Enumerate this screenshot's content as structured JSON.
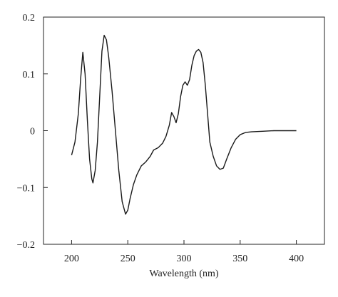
{
  "chart_data": {
    "type": "line",
    "xlabel": "Wavelength (nm)",
    "x": [
      200,
      203,
      206,
      208,
      210,
      212,
      214,
      216,
      218,
      219,
      221,
      223,
      225,
      227,
      229,
      231,
      233,
      236,
      239,
      242,
      245,
      248,
      250,
      252,
      255,
      258,
      262,
      266,
      270,
      273,
      277,
      281,
      284,
      287,
      289,
      291,
      293,
      295,
      297,
      299,
      301,
      303,
      305,
      307,
      309,
      311,
      313,
      315,
      317,
      319,
      321,
      323,
      326,
      329,
      332,
      335,
      338,
      342,
      346,
      350,
      355,
      360,
      370,
      380,
      390,
      400
    ],
    "series": [
      {
        "color": "#1a1a1a",
        "values": [
          -0.043,
          -0.02,
          0.03,
          0.09,
          0.138,
          0.1,
          0.02,
          -0.05,
          -0.085,
          -0.092,
          -0.07,
          -0.02,
          0.06,
          0.14,
          0.168,
          0.16,
          0.13,
          0.07,
          0.0,
          -0.07,
          -0.125,
          -0.147,
          -0.14,
          -0.12,
          -0.095,
          -0.078,
          -0.062,
          -0.055,
          -0.045,
          -0.034,
          -0.03,
          -0.022,
          -0.01,
          0.01,
          0.032,
          0.025,
          0.014,
          0.03,
          0.06,
          0.08,
          0.086,
          0.08,
          0.09,
          0.115,
          0.132,
          0.14,
          0.143,
          0.138,
          0.12,
          0.08,
          0.03,
          -0.02,
          -0.045,
          -0.062,
          -0.068,
          -0.066,
          -0.05,
          -0.03,
          -0.015,
          -0.007,
          -0.003,
          -0.002,
          -0.001,
          0,
          0,
          0
        ]
      }
    ],
    "xlim": [
      175,
      425
    ],
    "xticks": [
      200,
      250,
      300,
      350,
      400
    ],
    "ylim": [
      -0.2,
      0.2
    ],
    "yticks": [
      {
        "value": -0.2,
        "label": "−0.2"
      },
      {
        "value": -0.1,
        "label": "−0.1"
      },
      0,
      0.1,
      0.2
    ]
  }
}
